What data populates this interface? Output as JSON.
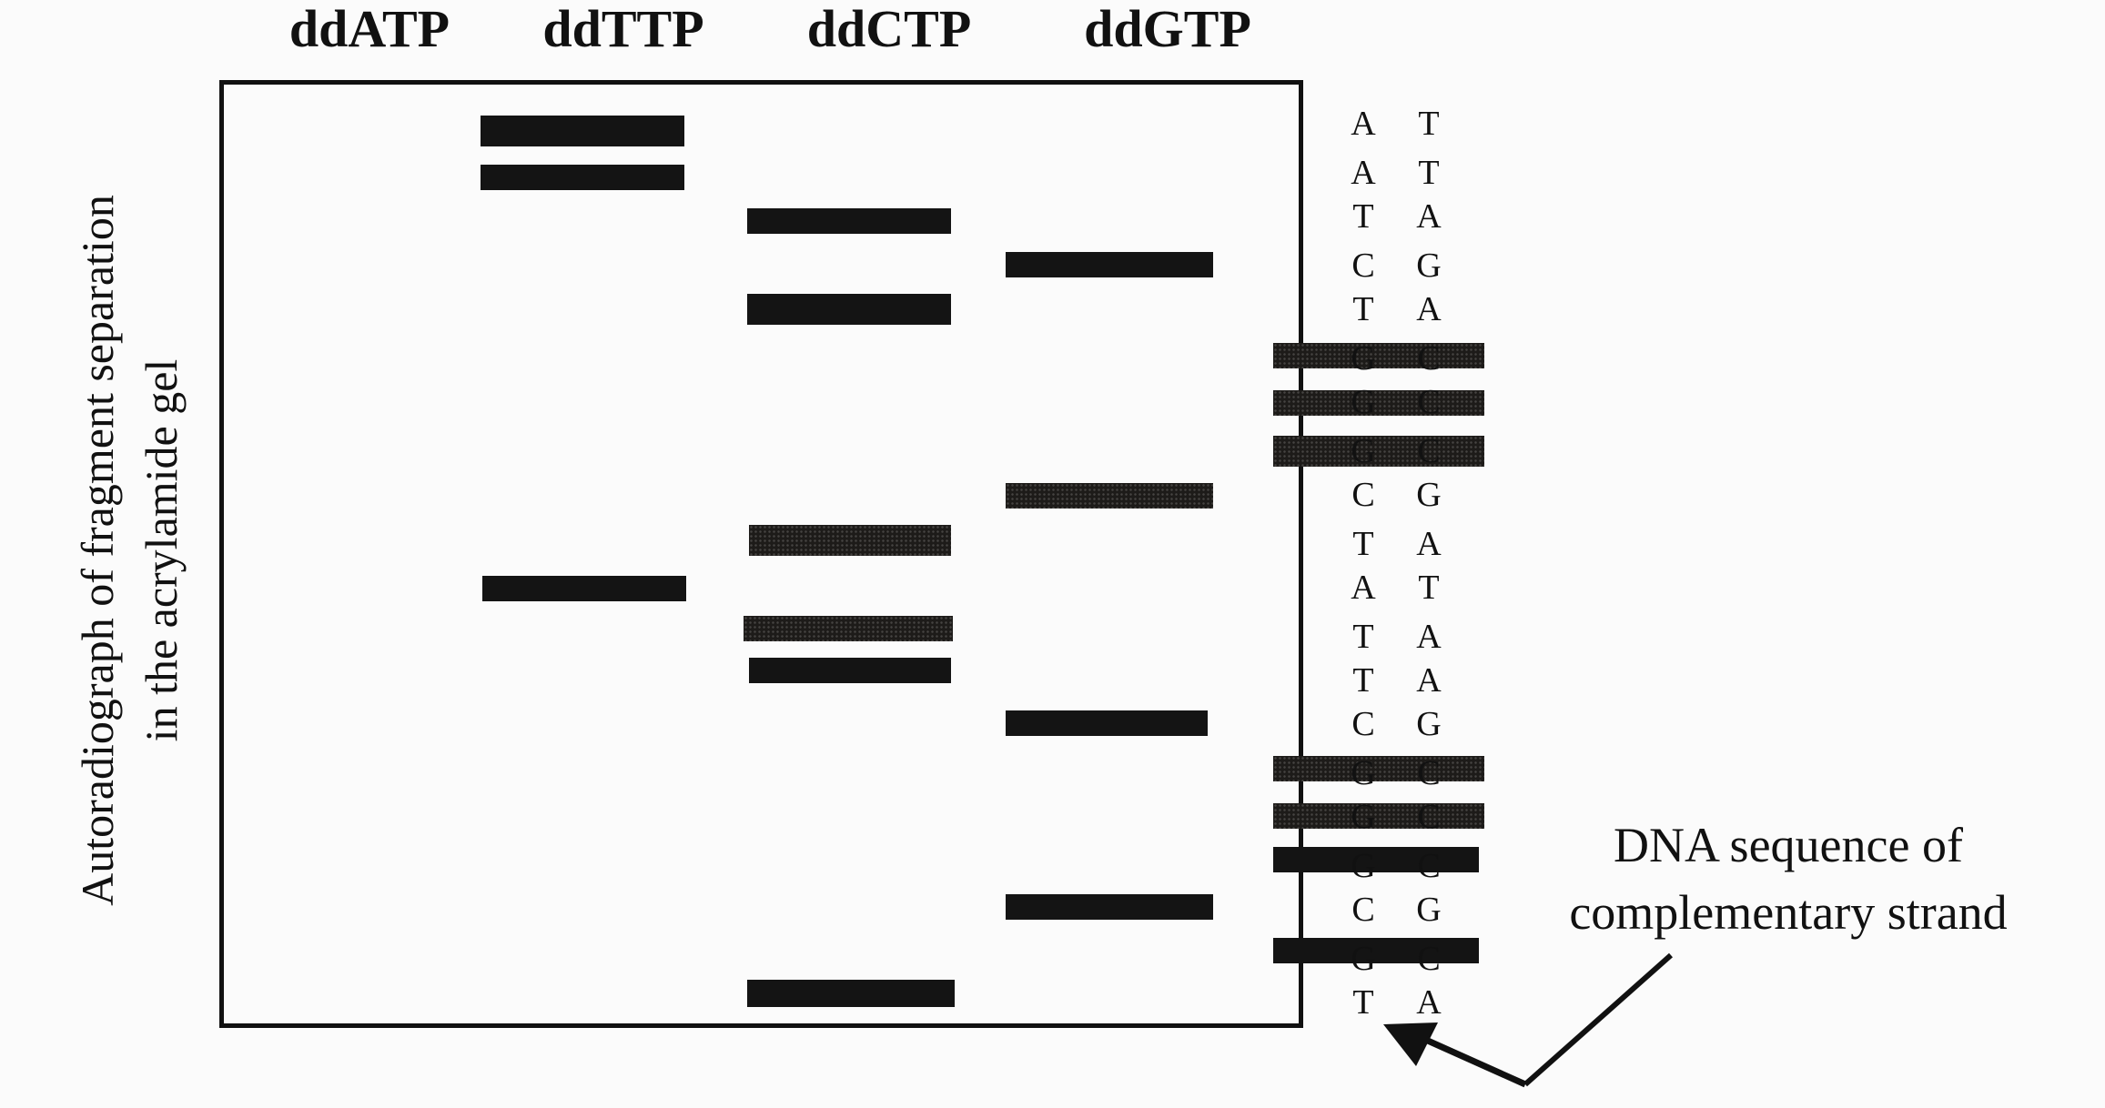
{
  "lane_titles": [
    "ddATP",
    "ddTTP",
    "ddCTP",
    "ddGTP"
  ],
  "side_label": {
    "line1": "Autoradiograph of fragment separation",
    "line2": "in the acrylamide gel"
  },
  "sequence": {
    "left": [
      "A",
      "A",
      "T",
      "C",
      "T",
      "G",
      "G",
      "G",
      "C",
      "T",
      "A",
      "T",
      "T",
      "C",
      "G",
      "G",
      "G",
      "C",
      "G",
      "T"
    ],
    "right": [
      "T",
      "T",
      "A",
      "G",
      "A",
      "C",
      "C",
      "C",
      "G",
      "A",
      "T",
      "A",
      "A",
      "G",
      "C",
      "C",
      "C",
      "G",
      "C",
      "A"
    ]
  },
  "caption": {
    "line1": "DNA sequence of",
    "line2": "complementary strand"
  }
}
